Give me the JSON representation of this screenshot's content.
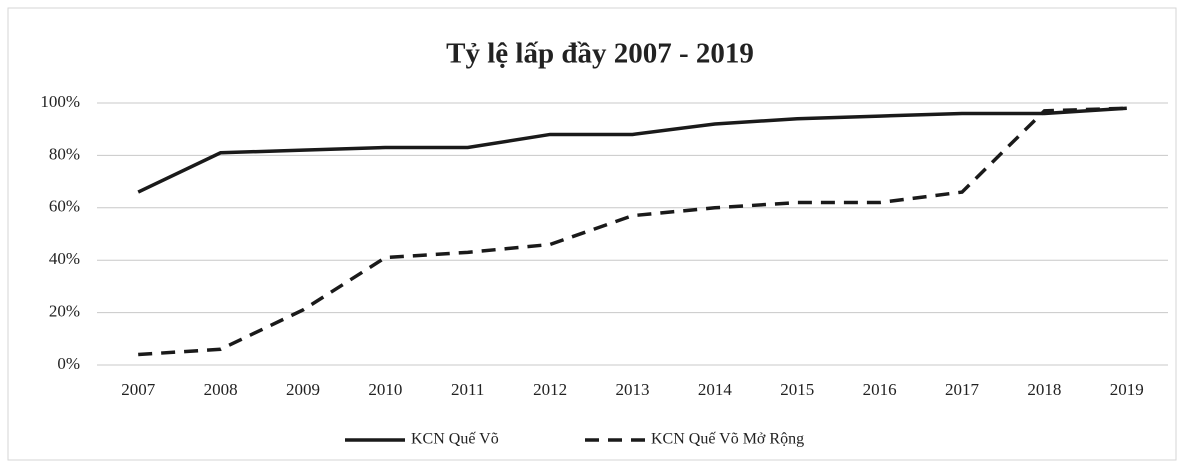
{
  "chart_data": {
    "type": "line",
    "title": "Tỷ lệ lấp đầy 2007 - 2019",
    "categories": [
      "2007",
      "2008",
      "2009",
      "2010",
      "2011",
      "2012",
      "2013",
      "2014",
      "2015",
      "2016",
      "2017",
      "2018",
      "2019"
    ],
    "series": [
      {
        "name": "KCN Quế Võ",
        "color": "#1a1a1a",
        "line_style": "solid",
        "values": [
          66,
          81,
          82,
          83,
          83,
          88,
          88,
          92,
          94,
          95,
          96,
          96,
          98
        ]
      },
      {
        "name": "KCN Quế Võ Mở Rộng",
        "color": "#1a1a1a",
        "line_style": "dashed",
        "values": [
          4,
          6,
          21,
          41,
          43,
          46,
          57,
          60,
          62,
          62,
          66,
          97,
          98
        ]
      }
    ],
    "ylim": [
      0,
      100
    ],
    "yticks": [
      {
        "value": 0,
        "label": "0%"
      },
      {
        "value": 20,
        "label": "20%"
      },
      {
        "value": 40,
        "label": "40%"
      },
      {
        "value": 60,
        "label": "60%"
      },
      {
        "value": 80,
        "label": "80%"
      },
      {
        "value": 100,
        "label": "100%"
      }
    ],
    "grid": true,
    "legend": "bottom"
  }
}
